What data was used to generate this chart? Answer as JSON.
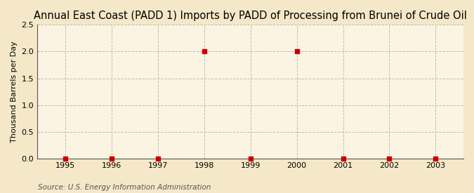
{
  "title": "Annual East Coast (PADD 1) Imports by PADD of Processing from Brunei of Crude Oil",
  "ylabel": "Thousand Barrels per Day",
  "source": "Source: U.S. Energy Information Administration",
  "x": [
    1995,
    1996,
    1997,
    1998,
    1999,
    2000,
    2001,
    2002,
    2003
  ],
  "y": [
    0.0,
    0.0,
    0.0,
    2.0,
    0.0,
    2.0,
    0.0,
    0.0,
    0.0
  ],
  "xlim": [
    1994.4,
    2003.6
  ],
  "ylim": [
    0.0,
    2.5
  ],
  "yticks": [
    0.0,
    0.5,
    1.0,
    1.5,
    2.0,
    2.5
  ],
  "xticks": [
    1995,
    1996,
    1997,
    1998,
    1999,
    2000,
    2001,
    2002,
    2003
  ],
  "background_color": "#F5E8C8",
  "plot_bg_color": "#FBF4E2",
  "marker_color": "#CC0000",
  "marker": "s",
  "marker_size": 4,
  "grid_color": "#BBBBBB",
  "title_fontsize": 10.5,
  "axis_label_fontsize": 8,
  "tick_fontsize": 8,
  "source_fontsize": 7.5
}
